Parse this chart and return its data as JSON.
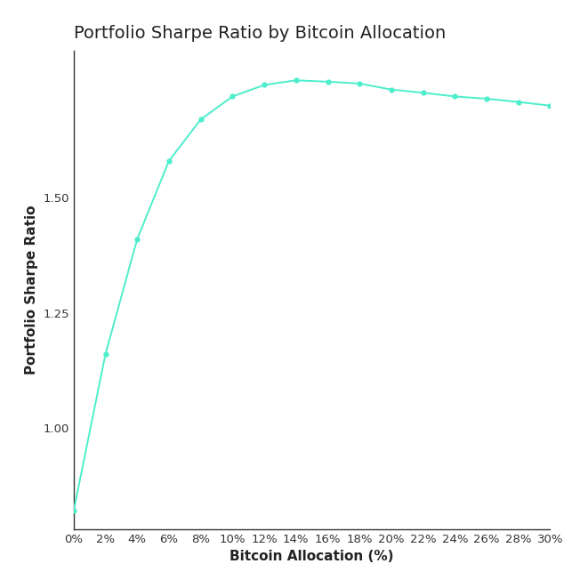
{
  "title": "Portfolio Sharpe Ratio by Bitcoin Allocation",
  "xlabel": "Bitcoin Allocation (%)",
  "ylabel": "Portfolio Sharpe Ratio",
  "x_values": [
    0,
    2,
    4,
    6,
    8,
    10,
    12,
    14,
    16,
    18,
    20,
    22,
    24,
    26,
    28,
    30
  ],
  "y_values": [
    0.82,
    1.16,
    1.41,
    1.58,
    1.67,
    1.72,
    1.745,
    1.755,
    1.752,
    1.748,
    1.735,
    1.728,
    1.72,
    1.715,
    1.708,
    1.7
  ],
  "line_color": "#4DEECC",
  "marker_color": "#4DEECC",
  "marker_size": 3.5,
  "line_width": 1.4,
  "background_color": "#ffffff",
  "title_fontsize": 14,
  "label_fontsize": 11,
  "tick_fontsize": 9.5,
  "ylim_min": 0.78,
  "ylim_max": 1.82,
  "yticks": [
    1.0,
    1.25,
    1.5
  ],
  "xtick_labels": [
    "0%",
    "2%",
    "4%",
    "6%",
    "8%",
    "10%",
    "12%",
    "14%",
    "16%",
    "18%",
    "20%",
    "22%",
    "24%",
    "26%",
    "28%",
    "30%"
  ]
}
